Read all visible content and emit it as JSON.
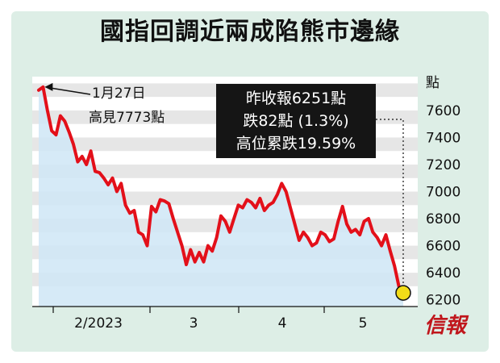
{
  "title": "國指回調近兩成陷熊市邊緣",
  "logo_text": "信報",
  "colors": {
    "line": "#e3101a",
    "area": "#cfe6f6",
    "band": "#e6e6e6",
    "frame": "#ddeee6",
    "box": "#151515",
    "marker": "#f2dc18"
  },
  "chart_data": {
    "type": "area",
    "title": "國指回調近兩成陷熊市邊緣",
    "ylabel": "點",
    "ylim": [
      6150,
      7850
    ],
    "yticks": [
      6200,
      6400,
      6600,
      6800,
      7000,
      7200,
      7400,
      7600
    ],
    "xticks": [
      "2/2023",
      "3",
      "4",
      "5"
    ],
    "series": [
      {
        "values": [
          7750,
          7773,
          7600,
          7450,
          7420,
          7560,
          7520,
          7440,
          7350,
          7220,
          7260,
          7200,
          7300,
          7150,
          7140,
          7100,
          7050,
          7100,
          7000,
          7060,
          6900,
          6840,
          6860,
          6700,
          6680,
          6600,
          6890,
          6850,
          6940,
          6930,
          6910,
          6800,
          6700,
          6600,
          6460,
          6570,
          6480,
          6550,
          6480,
          6600,
          6560,
          6660,
          6820,
          6780,
          6700,
          6800,
          6900,
          6880,
          6940,
          6920,
          6880,
          6950,
          6860,
          6900,
          6920,
          6980,
          7060,
          7000,
          6880,
          6760,
          6640,
          6700,
          6660,
          6600,
          6620,
          6700,
          6680,
          6630,
          6650,
          6780,
          6890,
          6760,
          6700,
          6720,
          6680,
          6780,
          6800,
          6700,
          6660,
          6600,
          6680,
          6560,
          6450,
          6300,
          6251
        ]
      }
    ],
    "annotations": {
      "high": {
        "date": "1月27日",
        "text": "高見7773點",
        "value": 7773
      },
      "box": [
        "昨收報6251點",
        "跌82點 (1.3%)",
        "高位累跌19.59%"
      ],
      "last": 6251
    }
  }
}
